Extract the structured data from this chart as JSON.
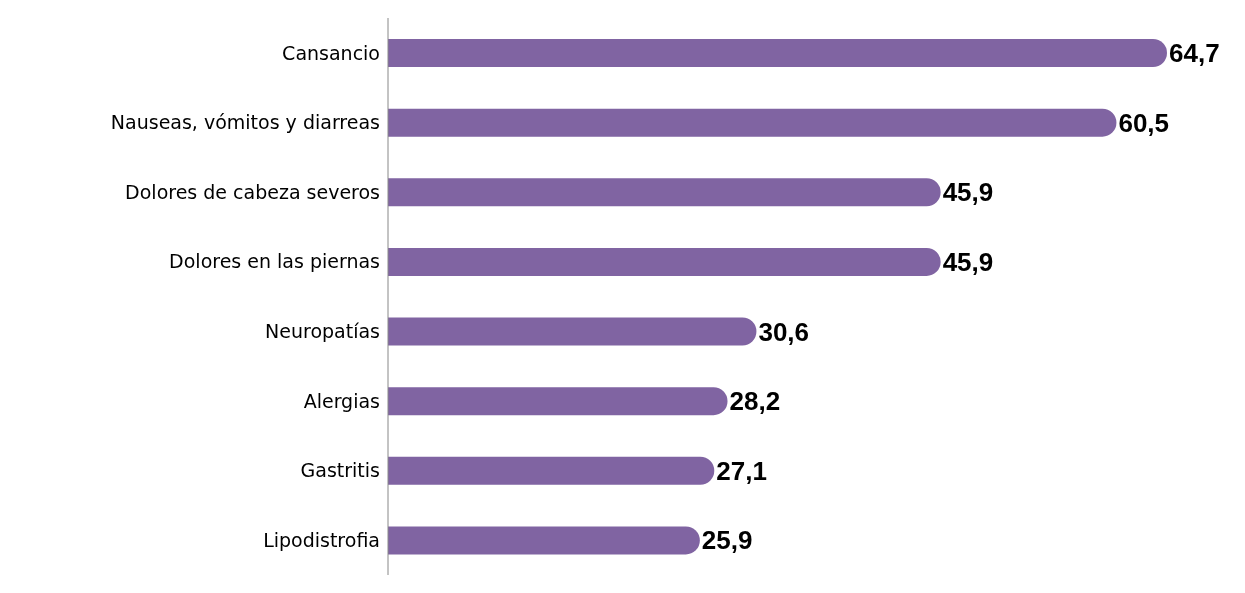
{
  "chart_data": {
    "type": "bar",
    "orientation": "horizontal",
    "categories": [
      "Cansancio",
      "Nauseas, vómitos y diarreas",
      "Dolores de cabeza severos",
      "Dolores en las piernas",
      "Neuropatías",
      "Alergias",
      "Gastritis",
      "Lipodistrofia"
    ],
    "values": [
      64.7,
      60.5,
      45.9,
      45.9,
      30.6,
      28.2,
      27.1,
      25.9
    ],
    "value_labels": [
      "64,7",
      "60,5",
      "45,9",
      "45,9",
      "30,6",
      "28,2",
      "27,1",
      "25,9"
    ],
    "color": "#8064a2",
    "grid": false
  }
}
